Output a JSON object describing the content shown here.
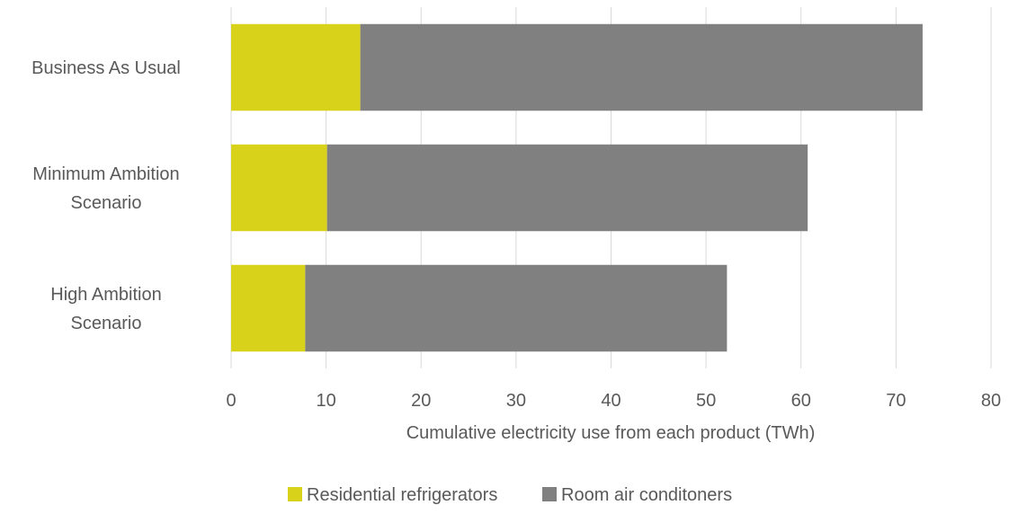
{
  "chart_data": {
    "type": "bar",
    "orientation": "horizontal",
    "stacked": true,
    "title": "",
    "categories": [
      [
        "Business As Usual"
      ],
      [
        "Minimum Ambition",
        "Scenario"
      ],
      [
        "High Ambition",
        "Scenario"
      ]
    ],
    "series": [
      {
        "name": "Residential refrigerators",
        "color": "#d9d21a",
        "values": [
          13.6,
          10.1,
          7.8
        ]
      },
      {
        "name": "Room air conditoners",
        "color": "#808080",
        "values": [
          59.2,
          50.6,
          44.4
        ]
      }
    ],
    "xlabel": "Cumulative electricity use from each product (TWh)",
    "ylabel": "",
    "xlim": [
      0,
      80
    ],
    "xticks": [
      "0",
      "10",
      "20",
      "30",
      "40",
      "50",
      "60",
      "70",
      "80"
    ],
    "grid": true,
    "legend": "bottom"
  }
}
